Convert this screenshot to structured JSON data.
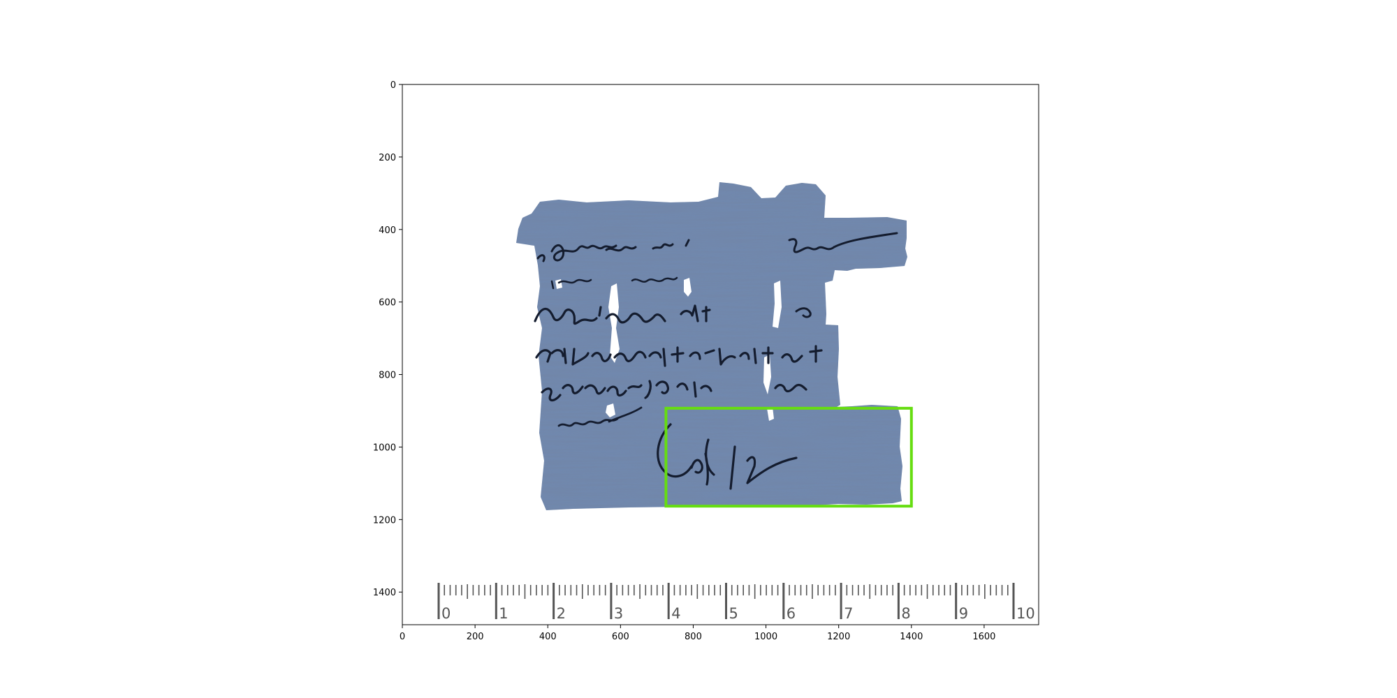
{
  "figure": {
    "x_axis": {
      "range": [
        0,
        1750
      ],
      "ticks": [
        0,
        200,
        400,
        600,
        800,
        1000,
        1200,
        1400,
        1600
      ],
      "tick_labels": [
        "0",
        "200",
        "400",
        "600",
        "800",
        "1000",
        "1200",
        "1400",
        "1600"
      ]
    },
    "y_axis": {
      "range": [
        1490,
        0
      ],
      "inverted": true,
      "ticks": [
        0,
        200,
        400,
        600,
        800,
        1000,
        1200,
        1400
      ],
      "tick_labels": [
        "0",
        "200",
        "400",
        "600",
        "800",
        "1000",
        "1200",
        "1400"
      ]
    },
    "image_content": {
      "subject": "papyrus fragment with handwritten Greek script",
      "papyrus_color": "#7189b0",
      "ink_color": "#141c2e",
      "ruler": {
        "labels": [
          "0",
          "1",
          "2",
          "3",
          "4",
          "5",
          "6",
          "7",
          "8",
          "9",
          "10"
        ],
        "color": "#555555"
      }
    },
    "highlight_box": {
      "color": "#66dd11",
      "x_range": [
        725,
        1400
      ],
      "y_range": [
        893,
        1163
      ]
    }
  }
}
